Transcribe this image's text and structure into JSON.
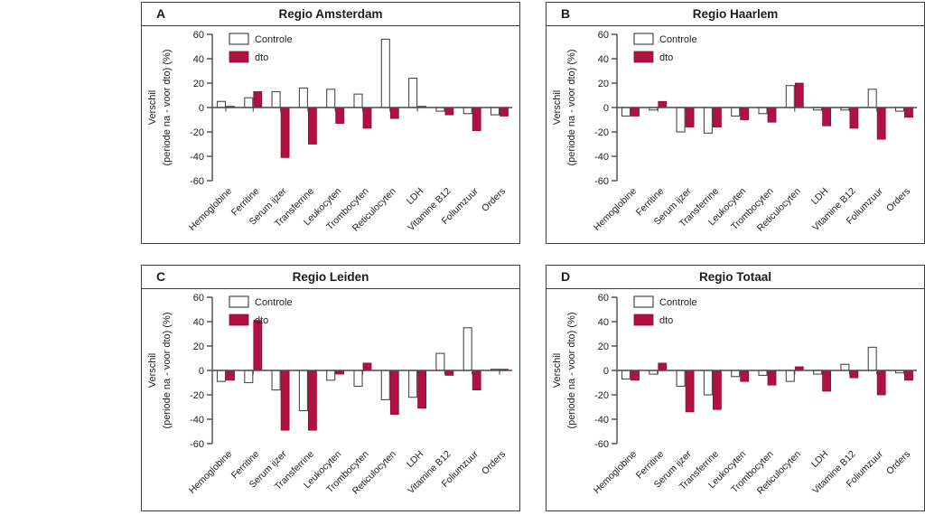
{
  "colors": {
    "controle_fill": "#ffffff",
    "dto_fill": "#b01142",
    "dto_stroke": "#8d0d36",
    "axis": "#4a4a4a",
    "text": "#222222",
    "panel_border": "#3e3e3e"
  },
  "axis": {
    "ylabel_line1": "Verschil",
    "ylabel_line2": "(periode na - voor dto) (%)",
    "yticks": [
      "60",
      "40",
      "20",
      "0",
      "-20",
      "-40",
      "-60"
    ],
    "ylim": [
      -60,
      60
    ]
  },
  "legend": {
    "items": [
      "Controle",
      "dto"
    ],
    "position": "top-left"
  },
  "chart_data": [
    {
      "type": "bar",
      "panel": "A",
      "title": "Regio Amsterdam",
      "xlabel": "",
      "ylabel": "Verschil (periode na - voor dto) (%)",
      "ylim": [
        -60,
        60
      ],
      "grid": false,
      "legend_position": "top-left",
      "categories": [
        "Hemoglobine",
        "Ferritine",
        "Serum ijzer",
        "Transferrine",
        "Leukocyten",
        "Trombocyten",
        "Reticulocyten",
        "LDH",
        "Vitamine B12",
        "Foliumzuur",
        "Orders"
      ],
      "series": [
        {
          "name": "Controle",
          "values": [
            5,
            8,
            13,
            16,
            15,
            11,
            56,
            24,
            -3,
            -5,
            -6
          ]
        },
        {
          "name": "dto",
          "values": [
            1,
            13,
            -41,
            -30,
            -13,
            -17,
            -9,
            1,
            -6,
            -19,
            -7
          ]
        }
      ]
    },
    {
      "type": "bar",
      "panel": "B",
      "title": "Regio Haarlem",
      "xlabel": "",
      "ylabel": "Verschil (periode na - voor dto) (%)",
      "ylim": [
        -60,
        60
      ],
      "grid": false,
      "legend_position": "top-left",
      "categories": [
        "Hemoglobine",
        "Ferritine",
        "Serum ijzer",
        "Transferrine",
        "Leukocyten",
        "Trombocyten",
        "Reticulocyten",
        "LDH",
        "Vitamine B12",
        "Foliumzuur",
        "Orders"
      ],
      "series": [
        {
          "name": "Controle",
          "values": [
            -7,
            -2,
            -20,
            -21,
            -7,
            -5,
            18,
            -2,
            -2,
            15,
            -3
          ]
        },
        {
          "name": "dto",
          "values": [
            -7,
            5,
            -16,
            -16,
            -10,
            -12,
            20,
            -15,
            -17,
            -26,
            -8
          ]
        }
      ]
    },
    {
      "type": "bar",
      "panel": "C",
      "title": "Regio Leiden",
      "xlabel": "",
      "ylabel": "Verschil (periode na - voor dto) (%)",
      "ylim": [
        -60,
        60
      ],
      "grid": false,
      "legend_position": "top-left",
      "categories": [
        "Hemoglobine",
        "Ferritine",
        "Serum ijzer",
        "Transferrine",
        "Leukocyten",
        "Trombocyten",
        "Reticulocyten",
        "LDH",
        "Vitamine B12",
        "Foliumzuur",
        "Orders"
      ],
      "series": [
        {
          "name": "Controle",
          "values": [
            -9,
            -10,
            -16,
            -33,
            -8,
            -13,
            -24,
            -22,
            14,
            35,
            1
          ]
        },
        {
          "name": "dto",
          "values": [
            -8,
            41,
            -49,
            -49,
            -3,
            6,
            -36,
            -31,
            -4,
            -16,
            1
          ]
        }
      ]
    },
    {
      "type": "bar",
      "panel": "D",
      "title": "Regio Totaal",
      "xlabel": "",
      "ylabel": "Verschil (periode na - voor dto) (%)",
      "ylim": [
        -60,
        60
      ],
      "grid": false,
      "legend_position": "top-left",
      "categories": [
        "Hemoglobine",
        "Ferritine",
        "Serum ijzer",
        "Transferrine",
        "Leukocyten",
        "Trombocyten",
        "Reticulocyten",
        "LDH",
        "Vitamine B12",
        "Foliumzuur",
        "Orders"
      ],
      "series": [
        {
          "name": "Controle",
          "values": [
            -7,
            -3,
            -13,
            -20,
            -5,
            -4,
            -9,
            -3,
            5,
            19,
            -2
          ]
        },
        {
          "name": "dto",
          "values": [
            -8,
            6,
            -34,
            -32,
            -9,
            -12,
            3,
            -17,
            -6,
            -20,
            -8
          ]
        }
      ]
    }
  ]
}
